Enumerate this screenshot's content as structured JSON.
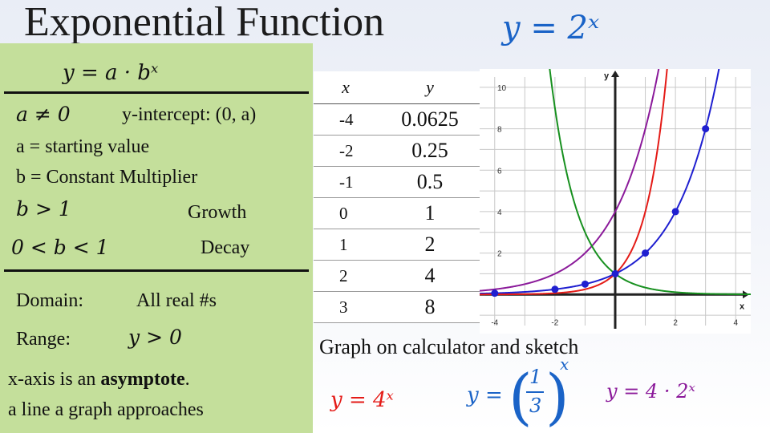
{
  "title": "Exponential Function",
  "main_equation": "y = 2ˣ",
  "box": {
    "general_form": "y = a · bˣ",
    "a_condition": "a ≠ 0",
    "y_intercept": "y-intercept: (0, a)",
    "a_def": "a = starting value",
    "b_def": "b = Constant Multiplier",
    "growth_cond": "b > 1",
    "growth_label": "Growth",
    "decay_cond": "0 < b < 1",
    "decay_label": "Decay",
    "domain_label": "Domain:",
    "domain_value": "All real #s",
    "range_label": "Range:",
    "range_value": "y > 0",
    "asymptote_pre": "x-axis is an ",
    "asymptote_bold": "asymptote",
    "asymptote_post": ".",
    "asymptote_def": "a line a graph approaches"
  },
  "table": {
    "headers": [
      "x",
      "y"
    ],
    "rows": [
      {
        "x": "-4",
        "y": "0.0625"
      },
      {
        "x": "-2",
        "y": "0.25"
      },
      {
        "x": "-1",
        "y": "0.5"
      },
      {
        "x": "0",
        "y": "1"
      },
      {
        "x": "1",
        "y": "2"
      },
      {
        "x": "2",
        "y": "4"
      },
      {
        "x": "3",
        "y": "8"
      }
    ]
  },
  "calculator_note": "Graph on calculator and sketch",
  "equations": {
    "four_x": "y = 4ˣ",
    "third_prefix": "y =",
    "third_num": "1",
    "third_den": "3",
    "third_exp": "x",
    "four_two_x": "y = 4 · 2ˣ"
  },
  "colors": {
    "box": "#c4df9b",
    "title_eq": "#1a63c7",
    "blue": "#1f1fd0",
    "red": "#e41b17",
    "purple": "#8b1a9a",
    "green": "#17901f"
  },
  "chart_data": {
    "type": "line",
    "xlabel": "x",
    "ylabel": "y",
    "xlim": [
      -4.5,
      4.5
    ],
    "ylim": [
      -1.5,
      10.5
    ],
    "grid": true,
    "x_ticks": [
      -4,
      -2,
      2,
      4
    ],
    "y_ticks": [
      2,
      4,
      6,
      8,
      10
    ],
    "series": [
      {
        "name": "y = 2ˣ",
        "color": "#1f1fd0",
        "base": 2,
        "coef": 1
      },
      {
        "name": "y = 4ˣ",
        "color": "#e41b17",
        "base": 4,
        "coef": 1
      },
      {
        "name": "y = 4 · 2ˣ",
        "color": "#8b1a9a",
        "base": 2,
        "coef": 4
      },
      {
        "name": "y = (1/3)ˣ",
        "color": "#17901f",
        "base": 0.3333333,
        "coef": 1
      }
    ],
    "points": [
      {
        "x": -4,
        "y": 0.0625
      },
      {
        "x": -2,
        "y": 0.25
      },
      {
        "x": -1,
        "y": 0.5
      },
      {
        "x": 0,
        "y": 1
      },
      {
        "x": 1,
        "y": 2
      },
      {
        "x": 2,
        "y": 4
      },
      {
        "x": 3,
        "y": 8
      }
    ]
  }
}
